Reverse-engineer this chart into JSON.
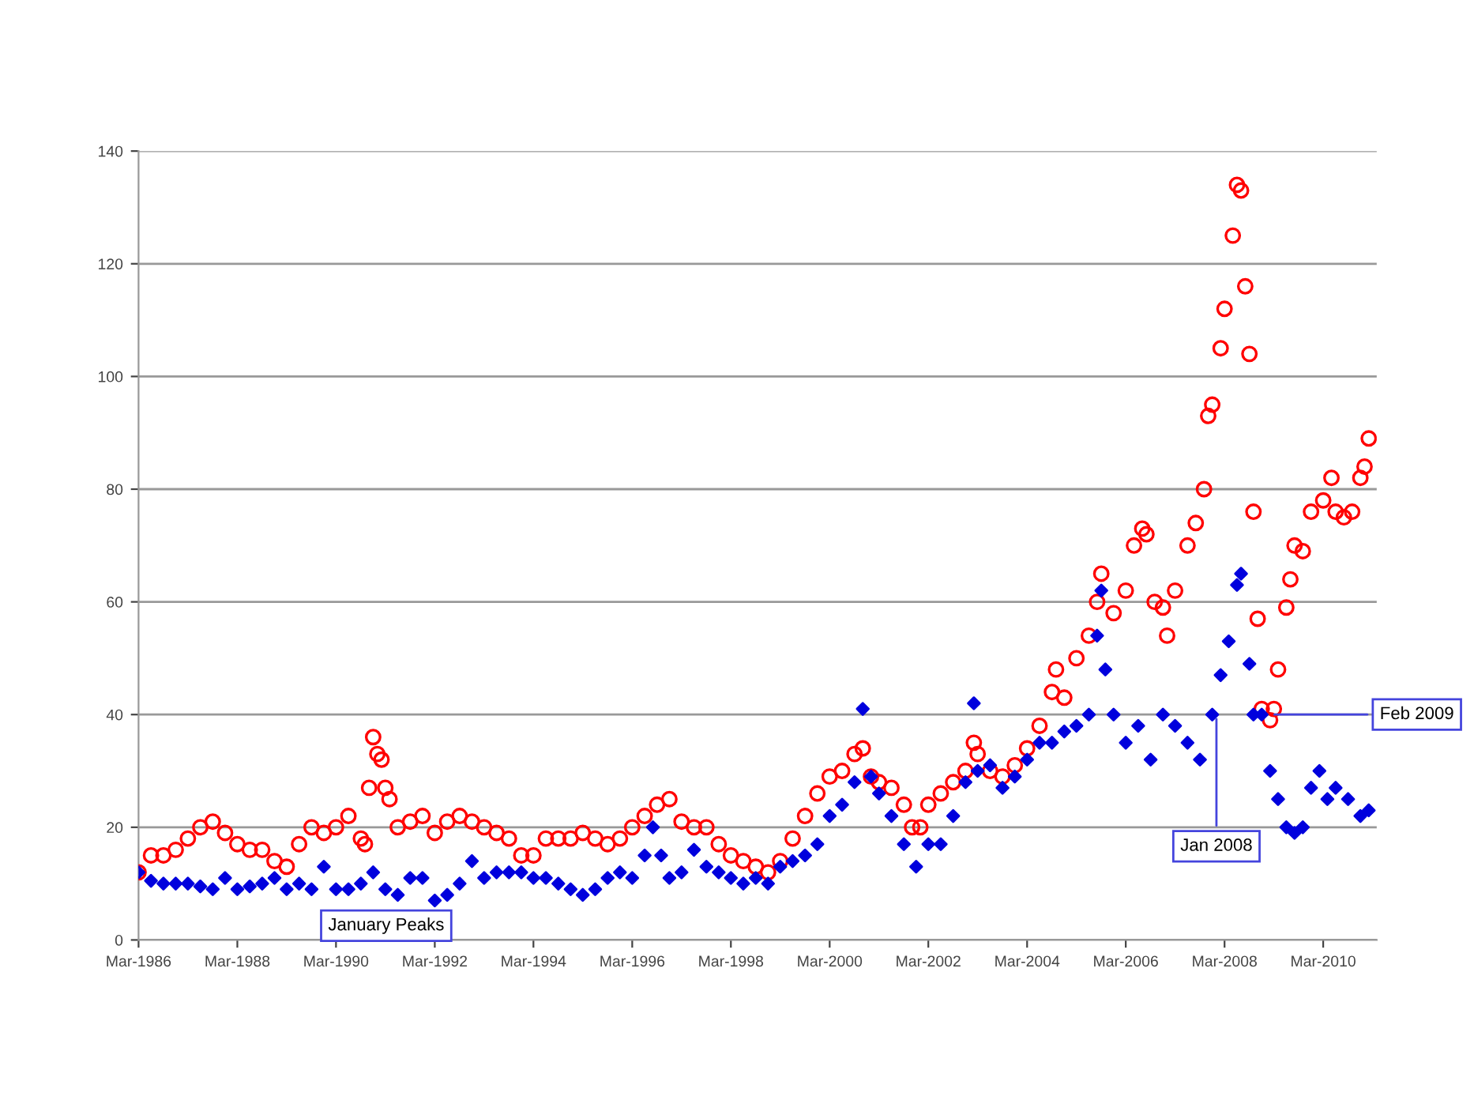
{
  "chart_data": {
    "type": "scatter",
    "x": [
      "1986-03",
      "1986-06",
      "1986-09",
      "1986-12",
      "1987-03",
      "1987-06",
      "1987-09",
      "1987-12",
      "1988-03",
      "1988-06",
      "1988-09",
      "1988-12",
      "1989-03",
      "1989-06",
      "1989-09",
      "1989-12",
      "1990-03",
      "1990-06",
      "1990-09",
      "1990-10",
      "1990-11",
      "1990-12",
      "1991-01",
      "1991-02",
      "1991-03",
      "1991-04",
      "1991-06",
      "1991-09",
      "1991-12",
      "1992-03",
      "1992-06",
      "1992-09",
      "1992-12",
      "1993-03",
      "1993-06",
      "1993-09",
      "1993-12",
      "1994-03",
      "1994-06",
      "1994-09",
      "1994-12",
      "1995-03",
      "1995-06",
      "1995-09",
      "1995-12",
      "1996-03",
      "1996-06",
      "1996-09",
      "1996-12",
      "1997-03",
      "1997-06",
      "1997-09",
      "1997-12",
      "1998-03",
      "1998-06",
      "1998-09",
      "1998-12",
      "1999-03",
      "1999-06",
      "1999-09",
      "1999-12",
      "2000-03",
      "2000-06",
      "2000-09",
      "2000-11",
      "2001-01",
      "2001-03",
      "2001-06",
      "2001-09",
      "2001-11",
      "2002-01",
      "2002-03",
      "2002-06",
      "2002-09",
      "2002-12",
      "2003-02",
      "2003-03",
      "2003-06",
      "2003-09",
      "2003-12",
      "2004-03",
      "2004-06",
      "2004-09",
      "2004-10",
      "2004-12",
      "2005-03",
      "2005-06",
      "2005-08",
      "2005-09",
      "2005-12",
      "2006-03",
      "2006-05",
      "2006-07",
      "2006-08",
      "2006-10",
      "2006-12",
      "2007-01",
      "2007-03",
      "2007-06",
      "2007-08",
      "2007-10",
      "2007-11",
      "2007-12",
      "2008-02",
      "2008-03",
      "2008-05",
      "2008-06",
      "2008-07",
      "2008-08",
      "2008-09",
      "2008-10",
      "2008-11",
      "2008-12",
      "2009-02",
      "2009-03",
      "2009-04",
      "2009-06",
      "2009-07",
      "2009-08",
      "2009-10",
      "2009-12",
      "2010-03",
      "2010-05",
      "2010-06",
      "2010-08",
      "2010-10",
      "2010-12",
      "2011-01",
      "2011-02"
    ],
    "series": [
      {
        "color": "#ff0000",
        "marker": "circle",
        "values": [
          12,
          15,
          15,
          16,
          18,
          20,
          21,
          19,
          17,
          16,
          16,
          14,
          13,
          17,
          20,
          19,
          20,
          22,
          18,
          17,
          27,
          36,
          33,
          32,
          27,
          25,
          20,
          21,
          22,
          19,
          21,
          22,
          21,
          20,
          19,
          18,
          15,
          15,
          18,
          18,
          18,
          19,
          18,
          17,
          18,
          20,
          22,
          24,
          25,
          21,
          20,
          20,
          17,
          15,
          14,
          13,
          12,
          14,
          18,
          22,
          26,
          29,
          30,
          33,
          34,
          29,
          28,
          27,
          24,
          20,
          20,
          24,
          26,
          28,
          30,
          35,
          33,
          30,
          29,
          31,
          34,
          38,
          44,
          48,
          43,
          50,
          54,
          60,
          65,
          58,
          62,
          70,
          73,
          72,
          60,
          59,
          54,
          62,
          70,
          74,
          80,
          93,
          95,
          105,
          112,
          125,
          134,
          133,
          116,
          104,
          76,
          57,
          41,
          39,
          41,
          48,
          59,
          64,
          70,
          69,
          76,
          78,
          82,
          76,
          75,
          76,
          82,
          84,
          89
        ]
      },
      {
        "color": "#0000dd",
        "marker": "diamond",
        "x": [
          "1986-03",
          "1986-06",
          "1986-09",
          "1986-12",
          "1987-03",
          "1987-06",
          "1987-09",
          "1987-12",
          "1988-03",
          "1988-06",
          "1988-09",
          "1988-12",
          "1989-03",
          "1989-06",
          "1989-09",
          "1989-12",
          "1990-03",
          "1990-06",
          "1990-09",
          "1990-12",
          "1991-03",
          "1991-06",
          "1991-09",
          "1991-12",
          "1992-03",
          "1992-06",
          "1992-09",
          "1992-12",
          "1993-03",
          "1993-06",
          "1993-09",
          "1993-12",
          "1994-03",
          "1994-06",
          "1994-09",
          "1994-12",
          "1995-03",
          "1995-06",
          "1995-09",
          "1995-12",
          "1996-03",
          "1996-06",
          "1996-08",
          "1996-10",
          "1996-12",
          "1997-03",
          "1997-06",
          "1997-09",
          "1997-12",
          "1998-03",
          "1998-06",
          "1998-09",
          "1998-12",
          "1999-03",
          "1999-06",
          "1999-09",
          "1999-12",
          "2000-03",
          "2000-06",
          "2000-09",
          "2000-11",
          "2001-01",
          "2001-03",
          "2001-06",
          "2001-09",
          "2001-12",
          "2002-03",
          "2002-06",
          "2002-09",
          "2002-12",
          "2003-02",
          "2003-03",
          "2003-06",
          "2003-09",
          "2003-12",
          "2004-03",
          "2004-06",
          "2004-09",
          "2004-12",
          "2005-03",
          "2005-06",
          "2005-08",
          "2005-09",
          "2005-10",
          "2005-12",
          "2006-03",
          "2006-06",
          "2006-09",
          "2006-12",
          "2007-03",
          "2007-06",
          "2007-09",
          "2007-12",
          "2008-02",
          "2008-04",
          "2008-06",
          "2008-07",
          "2008-09",
          "2008-10",
          "2008-12",
          "2009-02",
          "2009-04",
          "2009-06",
          "2009-08",
          "2009-10",
          "2009-12",
          "2010-02",
          "2010-04",
          "2010-06",
          "2010-09",
          "2010-12",
          "2011-02"
        ],
        "values": [
          12,
          10.5,
          10,
          10,
          10,
          9.5,
          9,
          11,
          9,
          9.5,
          10,
          11,
          9,
          10,
          9,
          13,
          9,
          9,
          10,
          12,
          9,
          8,
          11,
          11,
          7,
          8,
          10,
          14,
          11,
          12,
          12,
          12,
          11,
          11,
          10,
          9,
          8,
          9,
          11,
          12,
          11,
          15,
          20,
          15,
          11,
          12,
          16,
          13,
          12,
          11,
          10,
          11,
          10,
          13,
          14,
          15,
          17,
          22,
          24,
          28,
          41,
          29,
          26,
          22,
          17,
          13,
          17,
          17,
          22,
          28,
          42,
          30,
          31,
          27,
          29,
          32,
          35,
          35,
          37,
          38,
          40,
          54,
          62,
          48,
          40,
          35,
          38,
          32,
          40,
          38,
          35,
          32,
          40,
          47,
          53,
          63,
          65,
          49,
          40,
          40,
          30,
          25,
          20,
          19,
          20,
          27,
          30,
          25,
          27,
          25,
          22,
          23
        ]
      }
    ],
    "ylim": [
      0,
      140
    ],
    "yticks": [
      0,
      20,
      40,
      60,
      80,
      100,
      120,
      140
    ],
    "xlim": [
      "1986-03",
      "2011-04"
    ],
    "xticks": [
      {
        "value": "1986-03",
        "label": "Mar-1986"
      },
      {
        "value": "1988-03",
        "label": "Mar-1988"
      },
      {
        "value": "1990-03",
        "label": "Mar-1990"
      },
      {
        "value": "1992-03",
        "label": "Mar-1992"
      },
      {
        "value": "1994-03",
        "label": "Mar-1994"
      },
      {
        "value": "1996-03",
        "label": "Mar-1996"
      },
      {
        "value": "1998-03",
        "label": "Mar-1998"
      },
      {
        "value": "2000-03",
        "label": "Mar-2000"
      },
      {
        "value": "2002-03",
        "label": "Mar-2002"
      },
      {
        "value": "2004-03",
        "label": "Mar-2004"
      },
      {
        "value": "2006-03",
        "label": "Mar-2006"
      },
      {
        "value": "2008-03",
        "label": "Mar-2008"
      },
      {
        "value": "2010-03",
        "label": "Mar-2010"
      }
    ],
    "grid": "y",
    "annotations": [
      "January Peaks",
      {
        "text": "Jan 2008",
        "x": "2008-01",
        "y": 40
      },
      {
        "text": "Feb 2009",
        "x": "2009-02",
        "y": 40
      }
    ]
  }
}
